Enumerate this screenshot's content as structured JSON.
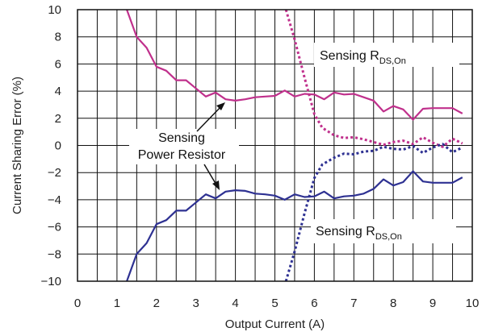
{
  "chart_data": {
    "type": "line",
    "title": "",
    "xlabel": "Output Current (A)",
    "ylabel": "Current Sharing Error (%)",
    "xlim": [
      0,
      10
    ],
    "ylim": [
      -10,
      10
    ],
    "x_ticks": [
      "0",
      "1",
      "2",
      "3",
      "4",
      "5",
      "6",
      "7",
      "8",
      "9",
      "10"
    ],
    "y_ticks": [
      "10",
      "8",
      "6",
      "4",
      "2",
      "0",
      "−2",
      "−4",
      "−6",
      "−8",
      "−10"
    ],
    "grid": true,
    "colors": {
      "magenta": "#c0308c",
      "navy": "#2e3192"
    },
    "annotations": {
      "rds_top": {
        "main": "Sensing R",
        "sub": "DS,On"
      },
      "rds_bottom": {
        "main": "Sensing R",
        "sub": "DS,On"
      },
      "power_resistor": [
        "Sensing",
        "Power Resistor"
      ]
    },
    "series": [
      {
        "style": "solid",
        "color": "#c0308c",
        "x": [
          1.25,
          1.5,
          1.75,
          2.0,
          2.25,
          2.5,
          2.75,
          3.0,
          3.25,
          3.5,
          3.75,
          4.0,
          4.25,
          4.5,
          4.75,
          5.0,
          5.25,
          5.5,
          5.75,
          6.0,
          6.25,
          6.5,
          6.75,
          7.0,
          7.25,
          7.5,
          7.75,
          8.0,
          8.25,
          8.5,
          8.75,
          9.0,
          9.25,
          9.5,
          9.75
        ],
        "y": [
          10.0,
          8.0,
          7.2,
          5.8,
          5.5,
          4.8,
          4.8,
          4.2,
          3.6,
          3.9,
          3.4,
          3.3,
          3.4,
          3.55,
          3.6,
          3.65,
          4.05,
          3.6,
          3.8,
          3.75,
          3.4,
          3.9,
          3.75,
          3.8,
          3.55,
          3.3,
          2.5,
          2.9,
          2.65,
          1.9,
          2.7,
          2.75,
          2.75,
          2.75,
          2.35
        ]
      },
      {
        "style": "solid",
        "color": "#2e3192",
        "x": [
          1.25,
          1.5,
          1.75,
          2.0,
          2.25,
          2.5,
          2.75,
          3.0,
          3.25,
          3.5,
          3.75,
          4.0,
          4.25,
          4.5,
          4.75,
          5.0,
          5.25,
          5.5,
          5.75,
          6.0,
          6.25,
          6.5,
          6.75,
          7.0,
          7.25,
          7.5,
          7.75,
          8.0,
          8.25,
          8.5,
          8.75,
          9.0,
          9.25,
          9.5,
          9.75
        ],
        "y": [
          -10.0,
          -8.0,
          -7.2,
          -5.8,
          -5.5,
          -4.8,
          -4.8,
          -4.2,
          -3.6,
          -3.9,
          -3.4,
          -3.3,
          -3.35,
          -3.55,
          -3.6,
          -3.7,
          -4.0,
          -3.6,
          -3.8,
          -3.75,
          -3.4,
          -3.9,
          -3.75,
          -3.7,
          -3.55,
          -3.2,
          -2.5,
          -2.95,
          -2.7,
          -1.9,
          -2.65,
          -2.75,
          -2.75,
          -2.75,
          -2.35
        ]
      },
      {
        "style": "dotted",
        "color": "#c0308c",
        "x": [
          5.28,
          5.5,
          5.75,
          6.0,
          6.2,
          6.5,
          6.75,
          7.0,
          7.25,
          7.5,
          7.75,
          8.0,
          8.25,
          8.5,
          8.75,
          9.0,
          9.25,
          9.5,
          9.75
        ],
        "y": [
          10.0,
          7.8,
          5.0,
          2.3,
          1.3,
          0.75,
          0.55,
          0.6,
          0.45,
          0.25,
          0.05,
          0.25,
          0.35,
          0.1,
          0.6,
          0.2,
          -0.1,
          0.5,
          0.15
        ]
      },
      {
        "style": "dotted",
        "color": "#2e3192",
        "x": [
          5.28,
          5.5,
          5.75,
          6.0,
          6.2,
          6.5,
          6.75,
          7.0,
          7.25,
          7.5,
          7.75,
          8.0,
          8.25,
          8.5,
          8.75,
          9.0,
          9.25,
          9.5,
          9.75
        ],
        "y": [
          -10.0,
          -7.8,
          -5.0,
          -2.4,
          -1.4,
          -0.9,
          -0.6,
          -0.65,
          -0.45,
          -0.4,
          -0.1,
          -0.25,
          -0.3,
          -0.05,
          -0.55,
          -0.15,
          0.1,
          -0.5,
          -0.15
        ]
      }
    ]
  }
}
